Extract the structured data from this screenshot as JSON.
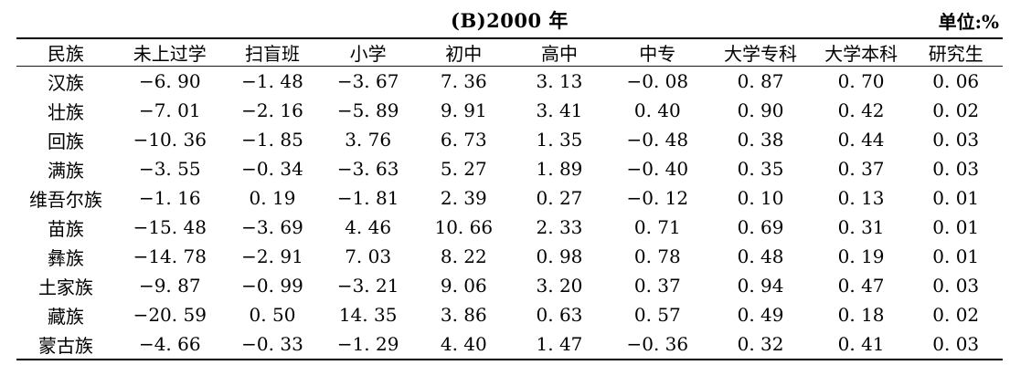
{
  "title": "(B)2000 年",
  "unit_label": "单位:%",
  "table": {
    "columns": [
      "民族",
      "未上过学",
      "扫盲班",
      "小学",
      "初中",
      "高中",
      "中专",
      "大学专科",
      "大学本科",
      "研究生"
    ],
    "rows": [
      {
        "name": "汉族",
        "values": [
          "−6. 90",
          "−1. 48",
          "−3. 67",
          "7. 36",
          "3. 13",
          "−0. 08",
          "0. 87",
          "0. 70",
          "0. 06"
        ]
      },
      {
        "name": "壮族",
        "values": [
          "−7. 01",
          "−2. 16",
          "−5. 89",
          "9. 91",
          "3. 41",
          "0. 40",
          "0. 90",
          "0. 42",
          "0. 02"
        ]
      },
      {
        "name": "回族",
        "values": [
          "−10. 36",
          "−1. 85",
          "3. 76",
          "6. 73",
          "1. 35",
          "−0. 48",
          "0. 38",
          "0. 44",
          "0. 03"
        ]
      },
      {
        "name": "满族",
        "values": [
          "−3. 55",
          "−0. 34",
          "−3. 63",
          "5. 27",
          "1. 89",
          "−0. 40",
          "0. 35",
          "0. 37",
          "0. 03"
        ]
      },
      {
        "name": "维吾尔族",
        "values": [
          "−1. 16",
          "0. 19",
          "−1. 81",
          "2. 39",
          "0. 27",
          "−0. 12",
          "0. 10",
          "0. 13",
          "0. 01"
        ]
      },
      {
        "name": "苗族",
        "values": [
          "−15. 48",
          "−3. 69",
          "4. 46",
          "10. 66",
          "2. 33",
          "0. 71",
          "0. 69",
          "0. 31",
          "0. 01"
        ]
      },
      {
        "name": "彝族",
        "values": [
          "−14. 78",
          "−2. 91",
          "7. 03",
          "8. 22",
          "0. 98",
          "0. 78",
          "0. 48",
          "0. 19",
          "0. 01"
        ]
      },
      {
        "name": "土家族",
        "values": [
          "−9. 87",
          "−0. 99",
          "−3. 21",
          "9. 06",
          "3. 20",
          "0. 37",
          "0. 94",
          "0. 47",
          "0. 03"
        ]
      },
      {
        "name": "藏族",
        "values": [
          "−20. 59",
          "0. 50",
          "14. 35",
          "3. 86",
          "0. 63",
          "0. 57",
          "0. 49",
          "0. 18",
          "0. 02"
        ]
      },
      {
        "name": "蒙古族",
        "values": [
          "−4. 66",
          "−0. 33",
          "−1. 29",
          "4. 40",
          "1. 47",
          "−0. 36",
          "0. 32",
          "0. 41",
          "0. 03"
        ]
      }
    ]
  }
}
